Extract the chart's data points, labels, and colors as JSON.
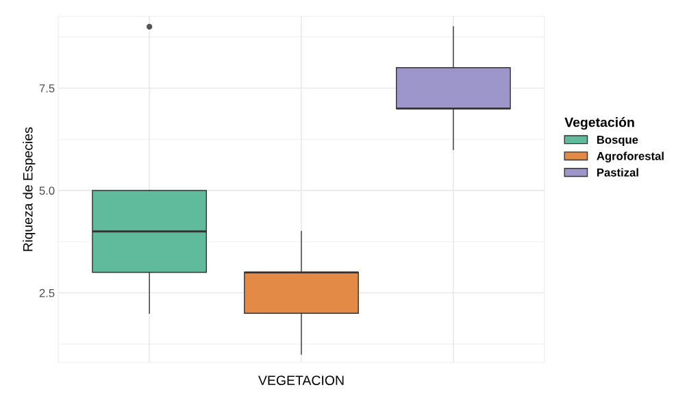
{
  "chart_data": {
    "type": "box",
    "xlabel": "VEGETACION",
    "ylabel": "Riqueza de Especies",
    "legend_title": "Vegetación",
    "categories": [
      null,
      null,
      null
    ],
    "series": [
      {
        "name": "Bosque",
        "color": "#5fbb9c",
        "boxes": [
          {
            "low": 2,
            "q1": 3,
            "median": 4,
            "q3": 5,
            "high": 5,
            "outliers": [
              9
            ]
          },
          null,
          null
        ]
      },
      {
        "name": "Agroforestal",
        "color": "#e38a47",
        "boxes": [
          null,
          {
            "low": 1,
            "q1": 2,
            "median": 3,
            "q3": 3,
            "high": 4
          },
          null
        ]
      },
      {
        "name": "Pastizal",
        "color": "#9d96cb",
        "boxes": [
          null,
          null,
          {
            "low": 6,
            "q1": 7,
            "median": 7,
            "q3": 8,
            "high": 9
          }
        ]
      }
    ],
    "ylim": [
      0.8,
      9.25
    ],
    "yticks": [
      2.5,
      {
        "value": 5,
        "label": "5.0"
      },
      7.5
    ],
    "grid": true,
    "legend": "right"
  }
}
